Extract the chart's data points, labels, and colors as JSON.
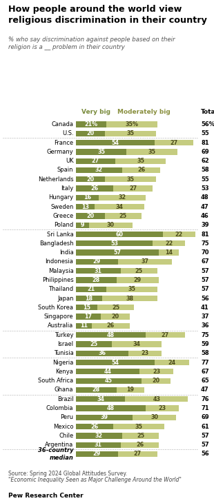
{
  "title": "How people around the world view\nreligious discrimination in their country",
  "subtitle": "% who say discrimination against people based on their\nreligion is a __ problem in their country",
  "categories": [
    "Canada",
    "U.S.",
    "France",
    "Germany",
    "UK",
    "Spain",
    "Netherlands",
    "Italy",
    "Hungary",
    "Sweden",
    "Greece",
    "Poland",
    "Sri Lanka",
    "Bangladesh",
    "India",
    "Indonesia",
    "Malaysia",
    "Philippines",
    "Thailand",
    "Japan",
    "South Korea",
    "Singapore",
    "Australia",
    "Turkey",
    "Israel",
    "Tunisia",
    "Nigeria",
    "Kenya",
    "South Africa",
    "Ghana",
    "Brazil",
    "Colombia",
    "Peru",
    "Mexico",
    "Chile",
    "Argentina",
    "36-country\nmedian"
  ],
  "very_big": [
    21,
    20,
    54,
    35,
    27,
    32,
    20,
    26,
    16,
    13,
    20,
    9,
    60,
    53,
    57,
    29,
    31,
    28,
    21,
    18,
    15,
    17,
    11,
    48,
    25,
    36,
    54,
    44,
    45,
    28,
    34,
    48,
    39,
    26,
    32,
    31,
    29
  ],
  "mod_big": [
    35,
    35,
    27,
    35,
    35,
    26,
    35,
    27,
    32,
    34,
    25,
    30,
    22,
    22,
    14,
    37,
    25,
    29,
    35,
    38,
    25,
    20,
    26,
    27,
    34,
    23,
    24,
    23,
    20,
    19,
    43,
    23,
    30,
    35,
    25,
    26,
    27
  ],
  "totals": [
    56,
    55,
    81,
    69,
    62,
    58,
    55,
    53,
    48,
    47,
    46,
    39,
    81,
    75,
    70,
    67,
    57,
    57,
    57,
    56,
    41,
    37,
    36,
    75,
    59,
    58,
    77,
    67,
    65,
    47,
    76,
    71,
    69,
    61,
    57,
    57,
    56
  ],
  "color_very_big": "#7b8c3e",
  "color_mod_big": "#c5cc80",
  "separator_after": [
    1,
    11,
    22,
    25,
    29,
    35
  ],
  "footnote1": "Source: Spring 2024 Global Attitudes Survey.",
  "footnote2": "\"Economic Inequality Seen as Major Challenge Around the World\"",
  "logo": "Pew Research Center"
}
